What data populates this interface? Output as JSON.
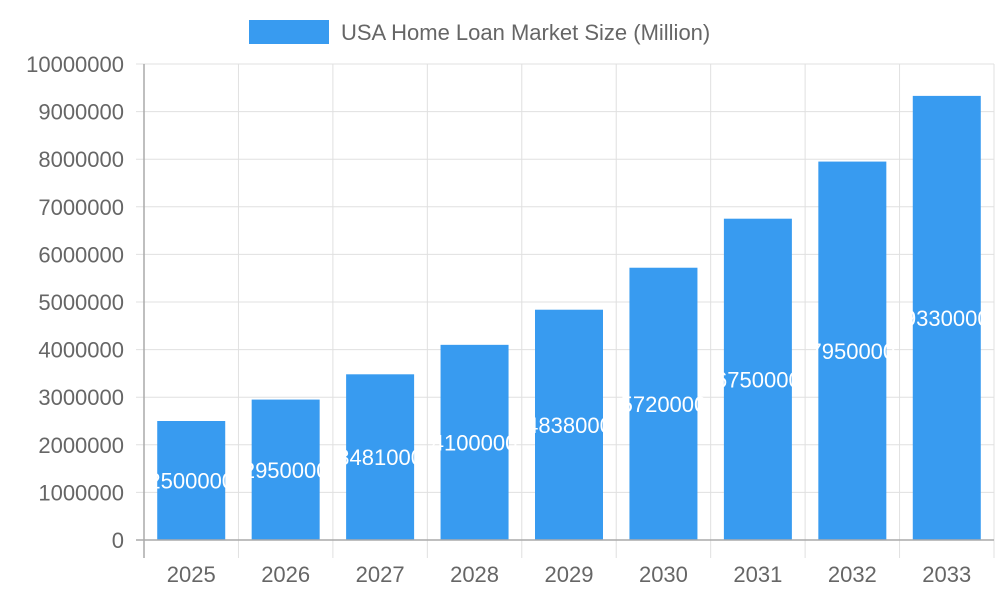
{
  "chart_data": {
    "type": "bar",
    "title": "",
    "legend": {
      "position": "top",
      "entries": [
        "USA Home Loan Market Size (Million)"
      ]
    },
    "categories": [
      "2025",
      "2026",
      "2027",
      "2028",
      "2029",
      "2030",
      "2031",
      "2032",
      "2033"
    ],
    "series": [
      {
        "name": "USA Home Loan Market Size (Million)",
        "color": "#389bf0",
        "values": [
          2500000,
          2950000,
          3481000,
          4100000,
          4838000,
          5720000,
          6750000,
          7950000,
          9330000
        ]
      }
    ],
    "xlabel": "",
    "ylabel": "",
    "ylim": [
      0,
      10000000
    ],
    "yticks": [
      0,
      1000000,
      2000000,
      3000000,
      4000000,
      5000000,
      6000000,
      7000000,
      8000000,
      9000000,
      10000000
    ],
    "grid": true,
    "data_labels": true
  },
  "legend": {
    "label": "USA Home Loan Market Size (Million)",
    "color": "#389bf0"
  },
  "colors": {
    "bar": "#389bf0",
    "grid": "#e0e0e0",
    "axis": "#aaaaaa",
    "text": "#666666",
    "label": "#ffffff"
  }
}
